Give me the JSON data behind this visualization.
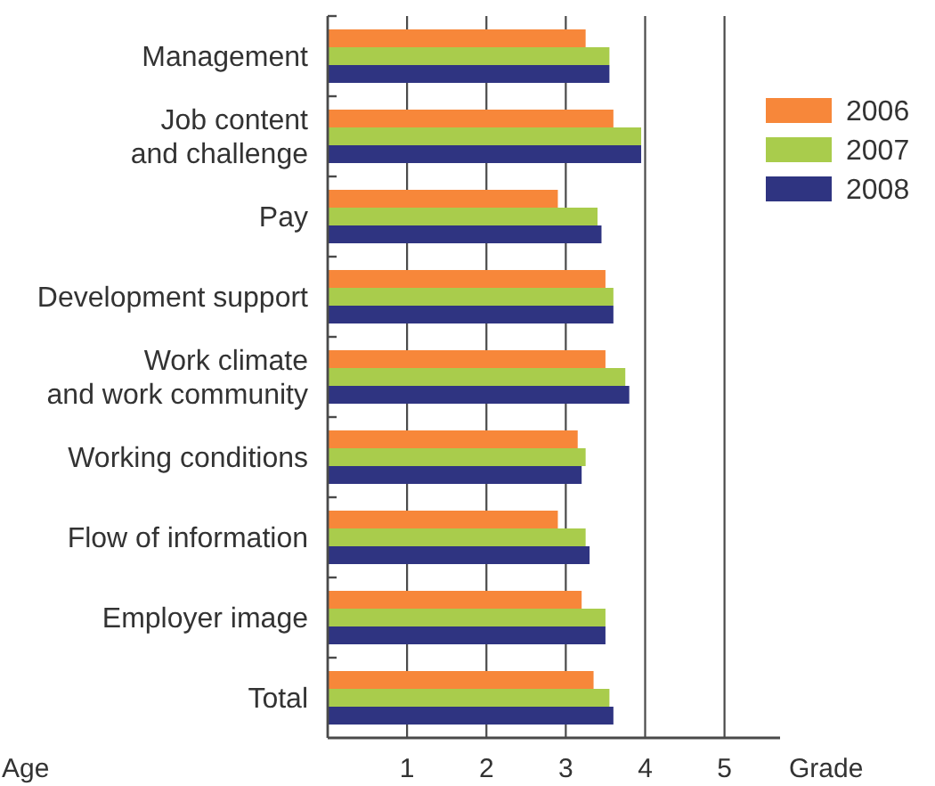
{
  "chart_data": {
    "type": "bar",
    "orientation": "horizontal",
    "categories": [
      "Management",
      "Job content\nand challenge",
      "Pay",
      "Development support",
      "Work climate\nand work community",
      "Working conditions",
      "Flow of information",
      "Employer image",
      "Total"
    ],
    "series": [
      {
        "name": "2006",
        "color": "#f7873a",
        "values": [
          3.25,
          3.6,
          2.9,
          3.5,
          3.5,
          3.15,
          2.9,
          3.2,
          3.35
        ]
      },
      {
        "name": "2007",
        "color": "#a9cc4c",
        "values": [
          3.55,
          3.95,
          3.4,
          3.6,
          3.75,
          3.25,
          3.25,
          3.5,
          3.55
        ]
      },
      {
        "name": "2008",
        "color": "#2f3481",
        "values": [
          3.55,
          3.95,
          3.45,
          3.6,
          3.8,
          3.2,
          3.3,
          3.5,
          3.6
        ]
      }
    ],
    "xlim": [
      0,
      5.7
    ],
    "xticks": [
      1,
      2,
      3,
      4,
      5
    ],
    "xlabel": "Grade",
    "grid": "x",
    "legend": "top right",
    "annotations": [
      "Age"
    ]
  }
}
